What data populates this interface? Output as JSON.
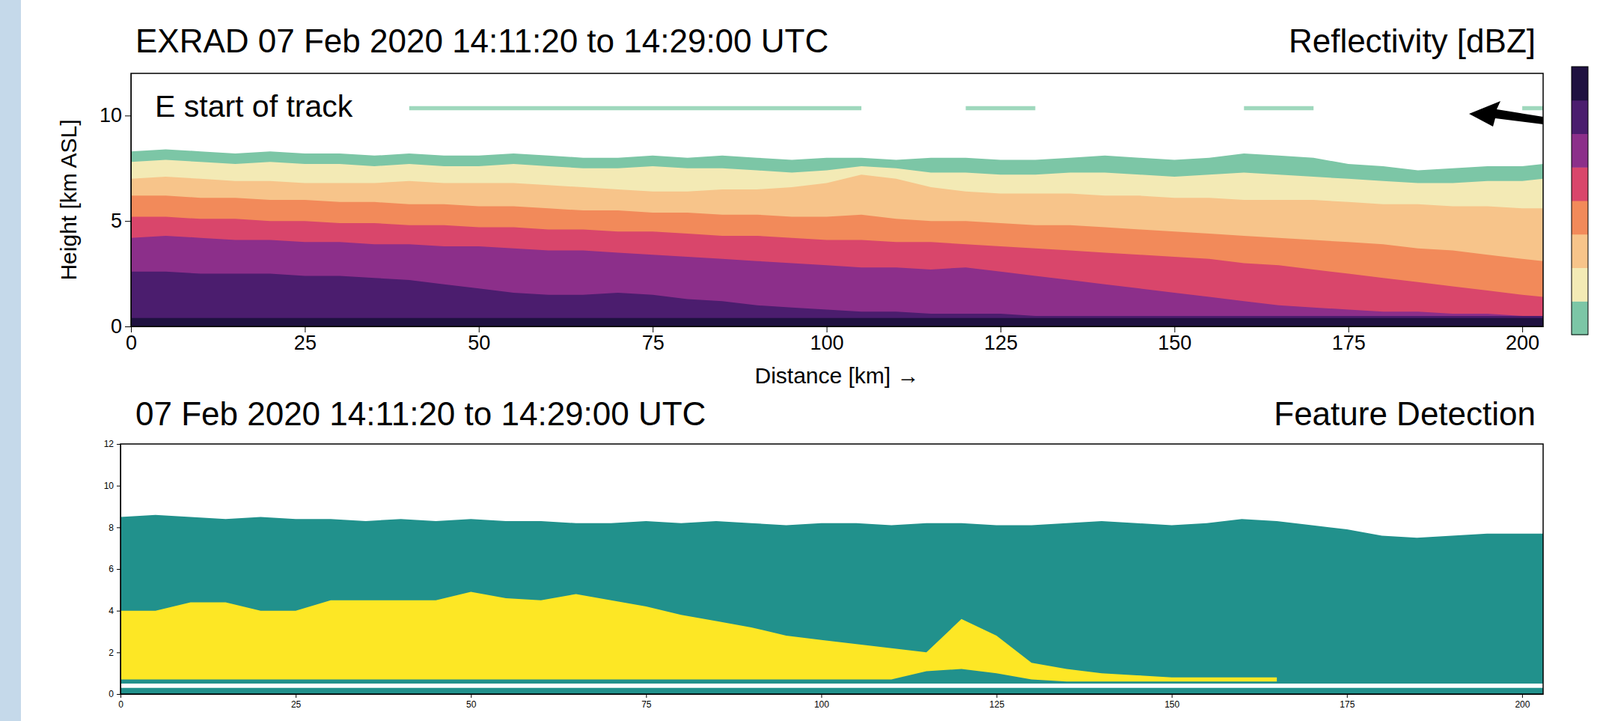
{
  "chart_data": [
    {
      "type": "area",
      "title": "EXRAD 07 Feb 2020 14:11:20 to 14:29:00 UTC",
      "subtitle": "Reflectivity [dBZ]",
      "x_label": "Distance [km] →",
      "y_label": "Height [km ASL]",
      "annotations": [
        "E start of track"
      ],
      "xlim": [
        0,
        203
      ],
      "xticks": [
        0,
        25,
        50,
        75,
        100,
        125,
        150,
        175,
        200
      ],
      "ylim": [
        0,
        12
      ],
      "yticks": [
        0,
        5,
        10
      ],
      "x": [
        0,
        5,
        10,
        15,
        20,
        25,
        30,
        35,
        40,
        45,
        50,
        55,
        60,
        65,
        70,
        75,
        80,
        85,
        90,
        95,
        100,
        105,
        110,
        115,
        120,
        125,
        130,
        135,
        140,
        145,
        150,
        155,
        160,
        165,
        170,
        175,
        180,
        185,
        190,
        195,
        200,
        203
      ],
      "series": [
        {
          "color": "#7cc6a6",
          "values": [
            8.3,
            8.4,
            8.3,
            8.2,
            8.3,
            8.2,
            8.2,
            8.1,
            8.2,
            8.1,
            8.1,
            8.2,
            8.1,
            8.0,
            8.0,
            8.1,
            8.0,
            8.1,
            8.0,
            7.9,
            8.0,
            8.0,
            7.9,
            8.0,
            8.0,
            7.9,
            7.9,
            8.0,
            8.1,
            8.0,
            7.9,
            8.0,
            8.2,
            8.1,
            8.0,
            7.7,
            7.6,
            7.4,
            7.5,
            7.6,
            7.6,
            7.7
          ]
        },
        {
          "color": "#f3eab5",
          "values": [
            7.8,
            7.9,
            7.8,
            7.7,
            7.8,
            7.7,
            7.7,
            7.6,
            7.7,
            7.6,
            7.6,
            7.7,
            7.6,
            7.5,
            7.5,
            7.6,
            7.5,
            7.5,
            7.4,
            7.3,
            7.4,
            7.6,
            7.5,
            7.3,
            7.3,
            7.2,
            7.2,
            7.3,
            7.3,
            7.2,
            7.1,
            7.2,
            7.3,
            7.2,
            7.1,
            7.0,
            6.9,
            6.8,
            6.8,
            6.9,
            6.9,
            7.0
          ]
        },
        {
          "color": "#f7c48a",
          "values": [
            7.0,
            7.1,
            7.0,
            6.9,
            6.9,
            6.8,
            6.8,
            6.8,
            6.9,
            6.8,
            6.8,
            6.8,
            6.7,
            6.6,
            6.5,
            6.4,
            6.4,
            6.5,
            6.5,
            6.6,
            6.8,
            7.2,
            7.0,
            6.6,
            6.4,
            6.3,
            6.3,
            6.3,
            6.2,
            6.2,
            6.1,
            6.1,
            6.0,
            6.0,
            6.0,
            5.9,
            5.8,
            5.8,
            5.7,
            5.7,
            5.6,
            5.6
          ]
        },
        {
          "color": "#f28a5a",
          "values": [
            6.2,
            6.2,
            6.1,
            6.1,
            6.0,
            6.0,
            5.9,
            5.9,
            5.8,
            5.8,
            5.7,
            5.7,
            5.6,
            5.5,
            5.5,
            5.4,
            5.4,
            5.3,
            5.3,
            5.2,
            5.2,
            5.3,
            5.1,
            5.0,
            5.0,
            4.9,
            4.8,
            4.8,
            4.7,
            4.6,
            4.5,
            4.4,
            4.3,
            4.2,
            4.1,
            4.0,
            3.9,
            3.7,
            3.6,
            3.4,
            3.2,
            3.1
          ]
        },
        {
          "color": "#d9466b",
          "values": [
            5.2,
            5.2,
            5.1,
            5.1,
            5.0,
            5.0,
            4.9,
            4.9,
            4.8,
            4.8,
            4.7,
            4.7,
            4.6,
            4.6,
            4.5,
            4.5,
            4.4,
            4.3,
            4.3,
            4.2,
            4.1,
            4.1,
            4.0,
            4.0,
            3.9,
            3.8,
            3.7,
            3.6,
            3.5,
            3.4,
            3.3,
            3.2,
            3.0,
            2.9,
            2.7,
            2.5,
            2.3,
            2.1,
            1.9,
            1.7,
            1.5,
            1.4
          ]
        },
        {
          "color": "#8c2f8a",
          "values": [
            4.2,
            4.3,
            4.2,
            4.1,
            4.1,
            4.0,
            4.0,
            3.9,
            3.9,
            3.8,
            3.8,
            3.7,
            3.6,
            3.6,
            3.5,
            3.4,
            3.3,
            3.2,
            3.1,
            3.0,
            2.9,
            2.8,
            2.8,
            2.7,
            2.8,
            2.6,
            2.4,
            2.2,
            2.0,
            1.8,
            1.6,
            1.4,
            1.2,
            1.0,
            0.9,
            0.8,
            0.7,
            0.7,
            0.6,
            0.6,
            0.5,
            0.5
          ]
        },
        {
          "color": "#4b1d6e",
          "values": [
            2.6,
            2.6,
            2.5,
            2.5,
            2.5,
            2.4,
            2.4,
            2.3,
            2.2,
            2.0,
            1.8,
            1.6,
            1.5,
            1.5,
            1.6,
            1.5,
            1.3,
            1.2,
            1.0,
            0.9,
            0.8,
            0.7,
            0.7,
            0.6,
            0.6,
            0.6,
            0.5,
            0.5,
            0.5,
            0.5,
            0.5,
            0.5,
            0.5,
            0.5,
            0.5,
            0.5,
            0.5,
            0.5,
            0.5,
            0.5,
            0.5,
            0.5
          ]
        },
        {
          "color": "#1f1140",
          "values": [
            0.4,
            0.4,
            0.4,
            0.4,
            0.4,
            0.4,
            0.4,
            0.4,
            0.4,
            0.4,
            0.4,
            0.4,
            0.4,
            0.4,
            0.4,
            0.4,
            0.4,
            0.4,
            0.4,
            0.4,
            0.4,
            0.4,
            0.4,
            0.4,
            0.4,
            0.4,
            0.4,
            0.4,
            0.4,
            0.4,
            0.4,
            0.4,
            0.4,
            0.4,
            0.4,
            0.4,
            0.4,
            0.4,
            0.4,
            0.4,
            0.4,
            0.4
          ]
        },
        {
          "color": "#9fd8bd",
          "values": [
            null,
            null,
            null,
            null,
            null,
            null,
            null,
            null,
            10.45,
            10.45,
            10.45,
            10.45,
            10.45,
            10.45,
            10.45,
            10.45,
            10.45,
            10.45,
            10.45,
            10.45,
            10.45,
            10.45,
            null,
            null,
            10.45,
            10.45,
            10.45,
            null,
            null,
            null,
            null,
            null,
            10.45,
            10.45,
            10.45,
            null,
            null,
            null,
            null,
            null,
            10.45,
            10.45
          ],
          "bottom": [
            null,
            null,
            null,
            null,
            null,
            null,
            null,
            null,
            10.25,
            10.25,
            10.25,
            10.25,
            10.25,
            10.25,
            10.25,
            10.25,
            10.25,
            10.25,
            10.25,
            10.25,
            10.25,
            10.25,
            null,
            null,
            10.25,
            10.25,
            10.25,
            null,
            null,
            null,
            null,
            null,
            10.25,
            10.25,
            10.25,
            null,
            null,
            null,
            null,
            null,
            10.25,
            10.25
          ]
        }
      ]
    },
    {
      "type": "area",
      "title": "07 Feb 2020 14:11:20 to 14:29:00 UTC",
      "subtitle": "Feature Detection",
      "xlim": [
        0,
        203
      ],
      "xticks": [
        0,
        25,
        50,
        75,
        100,
        125,
        150,
        175,
        200
      ],
      "ylim": [
        0,
        12
      ],
      "yticks": [
        0,
        2,
        4,
        6,
        8,
        10,
        12
      ],
      "x": [
        0,
        5,
        10,
        15,
        20,
        25,
        30,
        35,
        40,
        45,
        50,
        55,
        60,
        65,
        70,
        75,
        80,
        85,
        90,
        95,
        100,
        105,
        110,
        115,
        120,
        125,
        130,
        135,
        140,
        145,
        150,
        155,
        160,
        165,
        170,
        175,
        180,
        185,
        190,
        195,
        200,
        203
      ],
      "series": [
        {
          "color": "#21918c",
          "values": [
            0.3,
            0.3,
            0.3,
            0.3,
            0.3,
            0.3,
            0.3,
            0.3,
            0.3,
            0.3,
            0.3,
            0.3,
            0.3,
            0.3,
            0.3,
            0.3,
            0.3,
            0.3,
            0.3,
            0.3,
            0.3,
            0.3,
            0.3,
            0.3,
            0.3,
            0.3,
            0.3,
            0.3,
            0.3,
            0.3,
            0.3,
            0.3,
            0.3,
            0.3,
            0.3,
            0.3,
            0.3,
            0.3,
            0.3,
            0.3,
            0.3,
            0.3
          ],
          "bottom": [
            0,
            0,
            0,
            0,
            0,
            0,
            0,
            0,
            0,
            0,
            0,
            0,
            0,
            0,
            0,
            0,
            0,
            0,
            0,
            0,
            0,
            0,
            0,
            0,
            0,
            0,
            0,
            0,
            0,
            0,
            0,
            0,
            0,
            0,
            0,
            0,
            0,
            0,
            0,
            0,
            0,
            0
          ]
        },
        {
          "color": "#21918c",
          "values": [
            8.5,
            8.6,
            8.5,
            8.4,
            8.5,
            8.4,
            8.4,
            8.3,
            8.4,
            8.3,
            8.4,
            8.3,
            8.3,
            8.2,
            8.2,
            8.3,
            8.2,
            8.3,
            8.2,
            8.1,
            8.2,
            8.2,
            8.1,
            8.2,
            8.2,
            8.1,
            8.1,
            8.2,
            8.3,
            8.2,
            8.1,
            8.2,
            8.4,
            8.3,
            8.1,
            7.9,
            7.6,
            7.5,
            7.6,
            7.7,
            7.7,
            7.7
          ],
          "bottom": [
            0.5,
            0.5,
            0.5,
            0.5,
            0.5,
            0.5,
            0.5,
            0.5,
            0.5,
            0.5,
            0.5,
            0.5,
            0.5,
            0.5,
            0.5,
            0.5,
            0.5,
            0.5,
            0.5,
            0.5,
            0.5,
            0.5,
            0.5,
            0.5,
            0.5,
            0.5,
            0.5,
            0.5,
            0.5,
            0.5,
            0.5,
            0.5,
            0.5,
            0.5,
            0.5,
            0.5,
            0.5,
            0.5,
            0.5,
            0.5,
            0.5,
            0.5
          ]
        },
        {
          "color": "#fde725",
          "values": [
            4.0,
            4.0,
            4.4,
            4.4,
            4.0,
            4.0,
            4.5,
            4.5,
            4.5,
            4.5,
            4.9,
            4.6,
            4.5,
            4.8,
            4.5,
            4.2,
            3.8,
            3.5,
            3.2,
            2.8,
            2.6,
            2.4,
            2.2,
            2.0,
            3.6,
            2.8,
            1.5,
            1.2,
            1.0,
            0.9,
            0.8,
            0.8,
            0.8,
            0.8,
            null,
            null,
            null,
            null,
            null,
            null,
            null,
            null
          ],
          "bottom": [
            0.7,
            0.7,
            0.7,
            0.7,
            0.7,
            0.7,
            0.7,
            0.7,
            0.7,
            0.7,
            0.7,
            0.7,
            0.7,
            0.7,
            0.7,
            0.7,
            0.7,
            0.7,
            0.7,
            0.7,
            0.7,
            0.7,
            0.7,
            1.1,
            1.2,
            1.0,
            0.7,
            0.6,
            0.6,
            0.6,
            0.6,
            0.6,
            0.6,
            0.6,
            null,
            null,
            null,
            null,
            null,
            null,
            null,
            null
          ]
        }
      ]
    }
  ]
}
